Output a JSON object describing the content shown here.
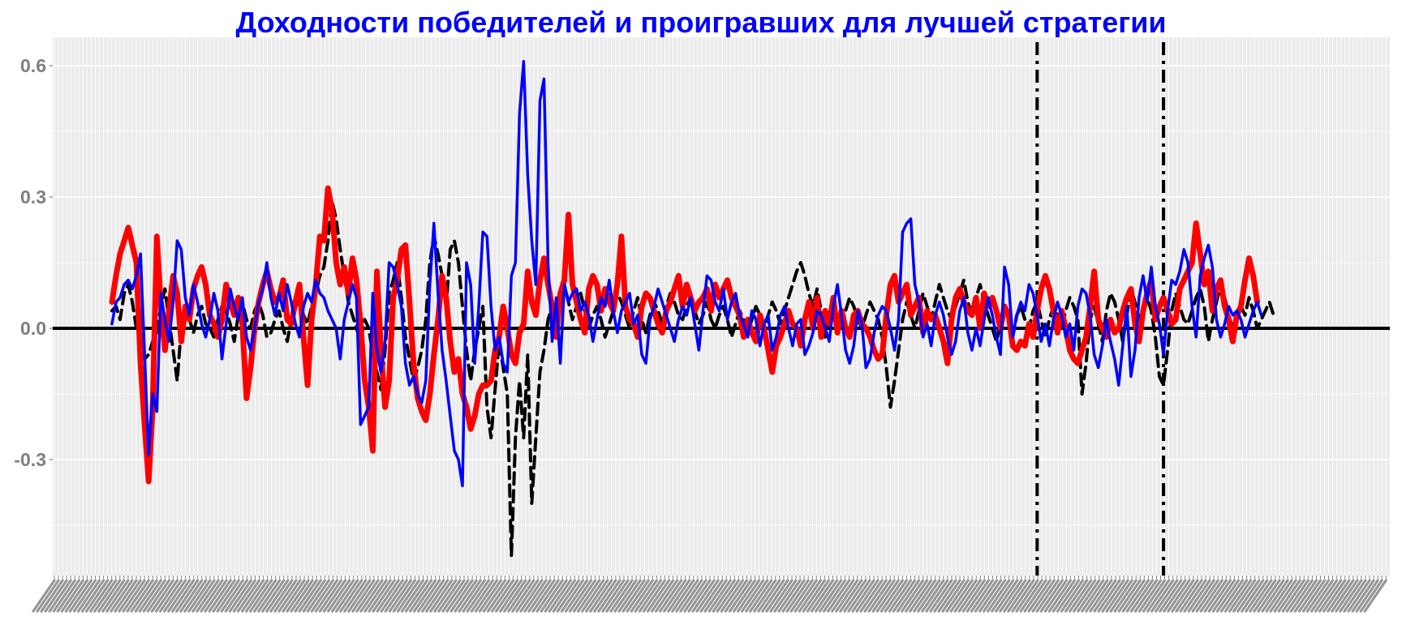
{
  "chart_data": {
    "type": "line",
    "title": "Доходности победителей и проигравших для лучшей стратегии",
    "xlabel": "",
    "ylabel": "",
    "ylim": [
      -0.565,
      0.665
    ],
    "yticks": [
      -0.3,
      0.0,
      0.3,
      0.6
    ],
    "ytick_labels": [
      "-0.3",
      "0.0",
      "0.3",
      "0.6"
    ],
    "x_count": 300,
    "x_tick_labels_legible": false,
    "grid": true,
    "legend": "none",
    "hline": 0.0,
    "vlines_x": [
      227,
      258
    ],
    "series": [
      {
        "style": "thick-solid",
        "color": "#ff0000",
        "values": [
          0.06,
          0.12,
          0.17,
          0.2,
          0.23,
          0.19,
          0.15,
          -0.08,
          -0.22,
          -0.35,
          -0.18,
          0.21,
          0.05,
          -0.05,
          0.04,
          0.12,
          0.08,
          -0.03,
          0.05,
          0.02,
          0.09,
          0.12,
          0.14,
          0.1,
          0.03,
          0.01,
          -0.02,
          0.02,
          0.1,
          0.06,
          0.03,
          0.07,
          0.01,
          -0.16,
          -0.09,
          0.0,
          0.06,
          0.1,
          0.13,
          0.09,
          0.06,
          0.07,
          0.11,
          0.02,
          0.01,
          0.06,
          0.1,
          -0.02,
          -0.13,
          0.02,
          0.1,
          0.21,
          0.2,
          0.32,
          0.27,
          0.15,
          0.1,
          0.14,
          0.08,
          0.16,
          0.11,
          0.01,
          -0.12,
          -0.18,
          -0.28,
          0.13,
          -0.05,
          -0.18,
          -0.12,
          0.07,
          0.11,
          0.18,
          0.19,
          0.06,
          -0.08,
          -0.16,
          -0.19,
          -0.21,
          -0.15,
          -0.06,
          0.02,
          0.12,
          0.07,
          -0.03,
          -0.1,
          -0.07,
          -0.15,
          -0.18,
          -0.23,
          -0.2,
          -0.15,
          -0.13,
          -0.13,
          -0.12,
          -0.05,
          -0.02,
          0.05,
          0.0,
          -0.06,
          -0.08,
          -0.01,
          0.01,
          0.13,
          0.06,
          0.03,
          0.11,
          0.16,
          0.1,
          0.05,
          -0.02,
          0.08,
          0.11,
          0.26,
          0.1,
          0.06,
          0.02,
          -0.01,
          0.09,
          0.12,
          0.1,
          0.04,
          0.09,
          0.06,
          0.04,
          0.1,
          0.21,
          0.05,
          0.02,
          0.01,
          -0.02,
          0.05,
          0.08,
          0.07,
          0.04,
          0.01,
          -0.01,
          0.04,
          0.06,
          0.09,
          0.12,
          0.05,
          0.1,
          0.07,
          0.04,
          0.06,
          0.07,
          0.09,
          0.04,
          0.1,
          0.07,
          0.09,
          0.11,
          0.07,
          0.05,
          0.03,
          -0.02,
          0.02,
          -0.01,
          -0.03,
          0.03,
          0.0,
          -0.05,
          -0.1,
          -0.04,
          -0.02,
          0.01,
          0.04,
          0.01,
          0.0,
          -0.04,
          0.02,
          0.06,
          0.0,
          0.07,
          -0.02,
          0.04,
          0.01,
          0.07,
          -0.01,
          0.04,
          0.0,
          -0.02,
          0.03,
          0.04,
          0.01,
          0.0,
          -0.02,
          -0.05,
          -0.07,
          -0.06,
          0.03,
          0.1,
          0.12,
          0.06,
          0.08,
          0.1,
          0.03,
          0.05,
          0.07,
          -0.01,
          0.04,
          0.02,
          0.03,
          0.0,
          -0.03,
          -0.08,
          0.02,
          0.07,
          0.09,
          0.06,
          0.04,
          0.03,
          0.07,
          0.0,
          0.08,
          0.05,
          0.07,
          0.04,
          0.0,
          0.05,
          0.03,
          -0.04,
          -0.05,
          -0.03,
          -0.04,
          0.01,
          -0.02,
          0.04,
          0.09,
          0.12,
          0.09,
          0.04,
          -0.01,
          0.04,
          0.0,
          -0.05,
          -0.07,
          -0.08,
          -0.05,
          -0.02,
          0.05,
          0.13,
          0.02,
          0.0,
          -0.02,
          0.02,
          -0.01,
          0.0,
          0.04,
          0.07,
          0.09,
          0.01,
          -0.03,
          0.04,
          0.08,
          0.11,
          0.02,
          0.05,
          0.07,
          0.04,
          0.01,
          0.02,
          0.09,
          0.11,
          0.13,
          0.15,
          0.24,
          0.17,
          0.1,
          0.13,
          0.04,
          0.09,
          0.11,
          0.05,
          0.02,
          -0.03,
          0.03,
          0.05,
          0.11,
          0.16,
          0.12,
          0.06
        ]
      },
      {
        "style": "solid",
        "color": "#0000ff",
        "values": [
          0.01,
          0.06,
          0.07,
          0.1,
          0.11,
          0.09,
          0.12,
          0.17,
          -0.06,
          -0.29,
          -0.15,
          -0.19,
          0.08,
          0.02,
          -0.03,
          0.06,
          0.2,
          0.18,
          0.07,
          0.03,
          0.1,
          0.06,
          0.01,
          -0.02,
          0.02,
          0.08,
          0.04,
          -0.07,
          0.01,
          0.09,
          0.05,
          0.02,
          0.07,
          -0.02,
          -0.05,
          0.0,
          0.06,
          0.09,
          0.15,
          0.07,
          0.03,
          0.08,
          0.04,
          0.1,
          0.06,
          0.01,
          -0.02,
          0.05,
          0.08,
          0.06,
          0.11,
          0.08,
          0.07,
          0.04,
          0.02,
          0.0,
          -0.07,
          0.02,
          0.06,
          0.1,
          0.07,
          -0.22,
          -0.2,
          -0.18,
          0.08,
          -0.05,
          -0.1,
          -0.03,
          0.15,
          0.14,
          0.1,
          0.05,
          -0.08,
          -0.13,
          -0.11,
          -0.15,
          -0.17,
          -0.12,
          0.1,
          0.24,
          0.08,
          -0.05,
          -0.12,
          -0.2,
          -0.28,
          -0.3,
          -0.36,
          0.15,
          0.1,
          -0.08,
          0.05,
          0.22,
          0.21,
          0.05,
          -0.05,
          -0.02,
          -0.08,
          -0.1,
          0.12,
          0.15,
          0.49,
          0.61,
          0.35,
          0.2,
          0.1,
          0.52,
          0.57,
          0.15,
          -0.03,
          0.07,
          -0.08,
          0.1,
          0.06,
          0.08,
          0.09,
          0.04,
          0.06,
          0.03,
          -0.03,
          0.02,
          0.07,
          0.05,
          0.11,
          0.04,
          -0.01,
          0.04,
          0.06,
          0.08,
          0.01,
          0.03,
          -0.06,
          -0.08,
          0.02,
          0.05,
          0.09,
          0.06,
          0.03,
          0.0,
          -0.03,
          0.02,
          0.05,
          0.03,
          0.07,
          0.01,
          -0.05,
          0.04,
          0.12,
          0.11,
          0.06,
          0.04,
          0.09,
          0.02,
          0.06,
          0.08,
          0.03,
          0.01,
          -0.02,
          0.04,
          0.02,
          -0.04,
          0.01,
          0.03,
          -0.05,
          -0.02,
          0.03,
          0.05,
          0.0,
          -0.04,
          0.01,
          0.02,
          -0.06,
          -0.04,
          -0.01,
          0.04,
          0.03,
          0.0,
          -0.03,
          0.05,
          0.1,
          0.03,
          -0.05,
          -0.08,
          -0.04,
          0.04,
          0.01,
          -0.09,
          -0.07,
          -0.01,
          0.03,
          0.05,
          0.04,
          0.0,
          -0.05,
          0.02,
          0.22,
          0.24,
          0.25,
          0.1,
          0.06,
          -0.02,
          0.01,
          -0.04,
          0.03,
          0.06,
          0.03,
          -0.02,
          -0.06,
          -0.03,
          0.04,
          0.07,
          -0.01,
          -0.05,
          0.0,
          -0.04,
          0.02,
          0.07,
          0.03,
          -0.02,
          -0.06,
          0.14,
          0.1,
          -0.02,
          0.03,
          0.06,
          0.04,
          0.1,
          0.08,
          0.03,
          -0.03,
          0.01,
          -0.04,
          0.02,
          0.06,
          0.03,
          -0.02,
          0.01,
          -0.05,
          0.05,
          0.09,
          0.08,
          0.03,
          -0.06,
          -0.09,
          -0.04,
          0.02,
          -0.03,
          -0.07,
          -0.13,
          -0.04,
          0.05,
          -0.11,
          -0.05,
          0.07,
          0.12,
          0.06,
          0.14,
          0.05,
          0.01,
          -0.06,
          0.04,
          0.11,
          0.1,
          0.13,
          0.18,
          0.15,
          0.05,
          -0.02,
          0.12,
          0.16,
          0.19,
          0.14,
          0.02,
          -0.02,
          0.01,
          0.05,
          0.03,
          0.04,
          0.02,
          -0.02,
          0.01,
          0.04,
          0.06,
          0.03
        ]
      },
      {
        "style": "dashed",
        "color": "#000000",
        "values": [
          0.04,
          0.05,
          0.02,
          0.08,
          0.1,
          0.06,
          0.0,
          0.04,
          -0.07,
          -0.06,
          -0.03,
          -0.01,
          0.05,
          0.09,
          0.02,
          -0.05,
          -0.12,
          0.0,
          0.04,
          0.02,
          -0.01,
          0.03,
          0.05,
          0.01,
          0.0,
          -0.02,
          0.02,
          0.05,
          0.04,
          0.01,
          -0.03,
          0.03,
          0.06,
          0.02,
          0.0,
          0.04,
          0.06,
          0.03,
          -0.02,
          -0.01,
          0.02,
          0.04,
          0.0,
          -0.03,
          0.02,
          0.05,
          0.06,
          0.03,
          0.01,
          0.05,
          0.08,
          0.12,
          0.14,
          0.2,
          0.29,
          0.25,
          0.18,
          0.12,
          0.06,
          0.03,
          0.0,
          -0.03,
          0.02,
          0.0,
          -0.06,
          -0.1,
          -0.14,
          -0.05,
          0.08,
          0.11,
          0.15,
          0.07,
          -0.02,
          -0.07,
          -0.12,
          -0.09,
          -0.05,
          0.02,
          0.15,
          0.21,
          0.17,
          0.12,
          0.05,
          0.18,
          0.2,
          0.15,
          0.05,
          -0.05,
          -0.12,
          -0.05,
          0.0,
          0.05,
          -0.18,
          -0.25,
          -0.14,
          -0.03,
          -0.09,
          -0.15,
          -0.52,
          -0.25,
          -0.12,
          -0.25,
          -0.06,
          -0.4,
          -0.25,
          -0.1,
          -0.05,
          0.02,
          0.05,
          0.03,
          0.08,
          0.1,
          0.06,
          0.02,
          0.05,
          0.08,
          0.04,
          0.0,
          0.03,
          0.05,
          0.02,
          -0.02,
          0.01,
          0.04,
          0.08,
          0.06,
          0.03,
          0.0,
          0.04,
          0.07,
          0.02,
          -0.01,
          0.03,
          0.06,
          0.04,
          0.01,
          0.05,
          0.08,
          0.06,
          0.03,
          0.02,
          0.05,
          0.07,
          0.04,
          0.01,
          0.03,
          0.06,
          0.02,
          0.0,
          0.03,
          0.05,
          0.02,
          -0.02,
          0.01,
          0.04,
          0.02,
          -0.01,
          0.02,
          0.05,
          0.03,
          0.0,
          0.03,
          0.06,
          0.04,
          0.01,
          0.04,
          0.07,
          0.1,
          0.13,
          0.15,
          0.12,
          0.08,
          0.05,
          0.09,
          0.04,
          -0.02,
          0.03,
          0.06,
          0.02,
          0.0,
          0.04,
          0.07,
          0.05,
          0.02,
          0.0,
          0.03,
          0.06,
          0.04,
          0.02,
          -0.02,
          -0.09,
          -0.18,
          -0.12,
          -0.05,
          0.02,
          0.06,
          0.03,
          0.0,
          0.04,
          0.08,
          0.05,
          0.02,
          0.06,
          0.1,
          0.07,
          0.04,
          0.02,
          0.05,
          0.08,
          0.11,
          0.06,
          0.03,
          0.07,
          0.1,
          0.06,
          0.03,
          0.0,
          -0.03,
          0.01,
          0.04,
          0.02,
          -0.02,
          0.03,
          0.05,
          0.02,
          0.0,
          0.04,
          0.06,
          0.02,
          -0.02,
          0.02,
          0.05,
          0.03,
          0.0,
          0.04,
          0.07,
          0.05,
          0.02,
          -0.15,
          -0.08,
          0.02,
          0.05,
          0.01,
          -0.03,
          0.04,
          0.08,
          0.06,
          0.02,
          -0.03,
          0.03,
          0.09,
          0.06,
          0.02,
          0.05,
          0.07,
          0.04,
          -0.02,
          -0.11,
          -0.13,
          -0.05,
          0.04,
          0.08,
          0.05,
          0.02,
          0.01,
          0.04,
          0.07,
          0.09,
          0.05,
          -0.03,
          0.02,
          0.06,
          0.1,
          0.07,
          0.03,
          0.0,
          0.02,
          0.05,
          0.03,
          0.07,
          0.04,
          0.0,
          0.02,
          0.04,
          0.06,
          0.03
        ]
      }
    ]
  }
}
